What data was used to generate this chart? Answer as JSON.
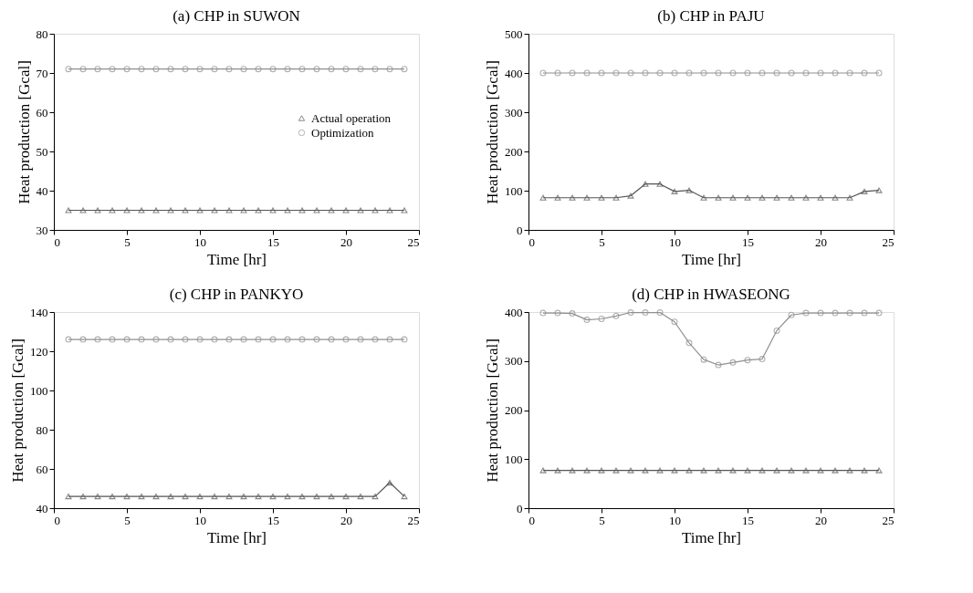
{
  "chart_data": [
    {
      "type": "line",
      "title": "(a) CHP in SUWON",
      "xlabel": "Time [hr]",
      "ylabel": "Heat production [Gcal]",
      "x": [
        1,
        2,
        3,
        4,
        5,
        6,
        7,
        8,
        9,
        10,
        11,
        12,
        13,
        14,
        15,
        16,
        17,
        18,
        19,
        20,
        21,
        22,
        23,
        24
      ],
      "xlim": [
        0,
        25
      ],
      "xticks": [
        0,
        5,
        10,
        15,
        20,
        25
      ],
      "ylim": [
        30,
        80
      ],
      "yticks": [
        30,
        40,
        50,
        60,
        70,
        80
      ],
      "legend": "right",
      "grid": false,
      "line_style": "solid",
      "series": [
        {
          "name": "Actual operation",
          "color": "#555555",
          "marker": "triangle",
          "values": [
            35,
            35,
            35,
            35,
            35,
            35,
            35,
            35,
            35,
            35,
            35,
            35,
            35,
            35,
            35,
            35,
            35,
            35,
            35,
            35,
            35,
            35,
            35,
            35
          ]
        },
        {
          "name": "Optimization",
          "color": "#909090",
          "marker": "circle",
          "values": [
            71,
            71,
            71,
            71,
            71,
            71,
            71,
            71,
            71,
            71,
            71,
            71,
            71,
            71,
            71,
            71,
            71,
            71,
            71,
            71,
            71,
            71,
            71,
            71
          ]
        }
      ]
    },
    {
      "type": "line",
      "title": "(b) CHP in PAJU",
      "xlabel": "Time [hr]",
      "ylabel": "Heat production [Gcal]",
      "x": [
        1,
        2,
        3,
        4,
        5,
        6,
        7,
        8,
        9,
        10,
        11,
        12,
        13,
        14,
        15,
        16,
        17,
        18,
        19,
        20,
        21,
        22,
        23,
        24
      ],
      "xlim": [
        0,
        25
      ],
      "xticks": [
        0,
        5,
        10,
        15,
        20,
        25
      ],
      "ylim": [
        0,
        500
      ],
      "yticks": [
        0,
        100,
        200,
        300,
        400,
        500
      ],
      "legend": false,
      "grid": false,
      "line_style": "solid",
      "series": [
        {
          "color": "#555555",
          "marker": "triangle",
          "values": [
            82,
            82,
            82,
            82,
            82,
            82,
            87,
            117,
            117,
            98,
            101,
            82,
            82,
            82,
            82,
            82,
            82,
            82,
            82,
            82,
            82,
            82,
            98,
            101
          ]
        },
        {
          "color": "#909090",
          "marker": "circle",
          "values": [
            400,
            400,
            400,
            400,
            400,
            400,
            400,
            400,
            400,
            400,
            400,
            400,
            400,
            400,
            400,
            400,
            400,
            400,
            400,
            400,
            400,
            400,
            400,
            400
          ]
        }
      ]
    },
    {
      "type": "line",
      "title": "(c) CHP in PANKYO",
      "xlabel": "Time [hr]",
      "ylabel": "Heat production [Gcal]",
      "x": [
        1,
        2,
        3,
        4,
        5,
        6,
        7,
        8,
        9,
        10,
        11,
        12,
        13,
        14,
        15,
        16,
        17,
        18,
        19,
        20,
        21,
        22,
        23,
        24
      ],
      "xlim": [
        0,
        25
      ],
      "xticks": [
        0,
        5,
        10,
        15,
        20,
        25
      ],
      "ylim": [
        40,
        140
      ],
      "yticks": [
        40,
        60,
        80,
        100,
        120,
        140
      ],
      "legend": false,
      "grid": false,
      "line_style": "solid",
      "series": [
        {
          "color": "#555555",
          "marker": "triangle",
          "values": [
            46,
            46,
            46,
            46,
            46,
            46,
            46,
            46,
            46,
            46,
            46,
            46,
            46,
            46,
            46,
            46,
            46,
            46,
            46,
            46,
            46,
            46,
            53,
            46
          ]
        },
        {
          "color": "#909090",
          "marker": "circle",
          "values": [
            126,
            126,
            126,
            126,
            126,
            126,
            126,
            126,
            126,
            126,
            126,
            126,
            126,
            126,
            126,
            126,
            126,
            126,
            126,
            126,
            126,
            126,
            126,
            126
          ]
        }
      ]
    },
    {
      "type": "line",
      "title": "(d) CHP in HWASEONG",
      "xlabel": "Time [hr]",
      "ylabel": "Heat production [Gcal]",
      "x": [
        1,
        2,
        3,
        4,
        5,
        6,
        7,
        8,
        9,
        10,
        11,
        12,
        13,
        14,
        15,
        16,
        17,
        18,
        19,
        20,
        21,
        22,
        23,
        24
      ],
      "xlim": [
        0,
        25
      ],
      "xticks": [
        0,
        5,
        10,
        15,
        20,
        25
      ],
      "ylim": [
        0,
        400
      ],
      "yticks": [
        0,
        100,
        200,
        300,
        400
      ],
      "legend": false,
      "grid": false,
      "line_style": "solid",
      "series": [
        {
          "color": "#555555",
          "marker": "triangle",
          "values": [
            77,
            77,
            77,
            77,
            77,
            77,
            77,
            77,
            77,
            77,
            77,
            77,
            77,
            77,
            77,
            77,
            77,
            77,
            77,
            77,
            77,
            77,
            77,
            77
          ]
        },
        {
          "color": "#909090",
          "marker": "circle",
          "values": [
            398,
            398,
            397,
            384,
            386,
            392,
            399,
            399,
            399,
            380,
            337,
            303,
            292,
            297,
            302,
            304,
            362,
            394,
            398,
            398,
            398,
            398,
            398,
            398
          ]
        }
      ]
    }
  ]
}
